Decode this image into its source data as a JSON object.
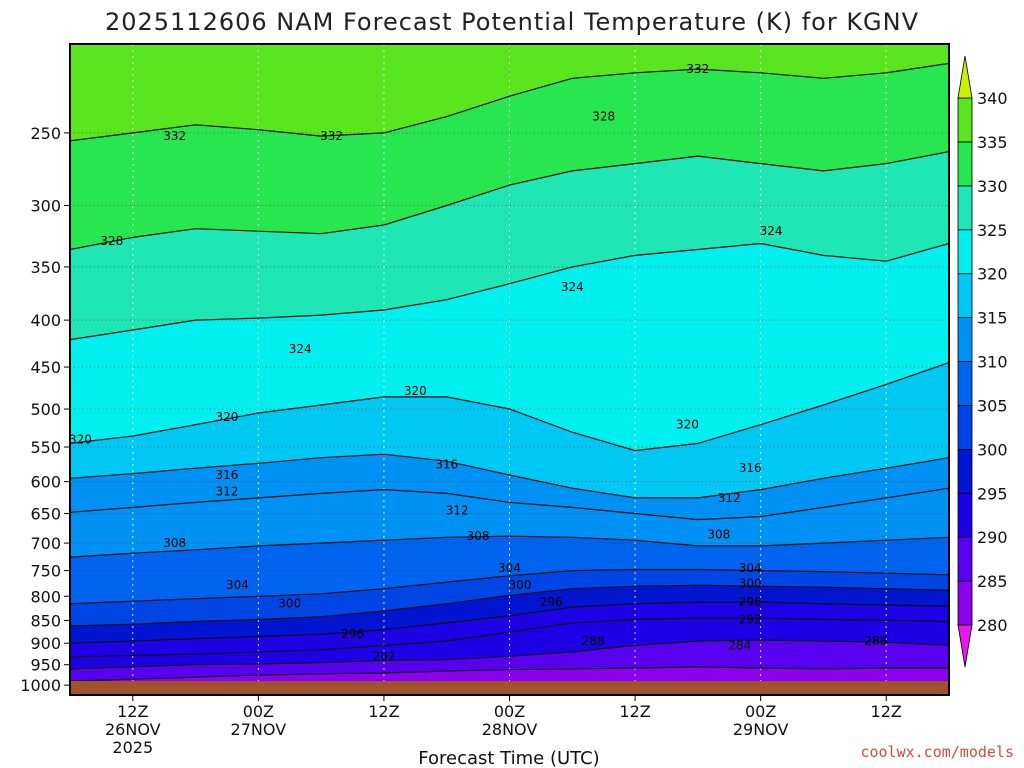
{
  "chart_data": {
    "type": "heatmap",
    "title": "2025112606 NAM Forecast Potential Temperature (K) for KGNV",
    "xlabel": "Forecast Time (UTC)",
    "ylabel": "",
    "credit": "coolwx.com/models",
    "y_scale": "log-pressure (hPa, inverted)",
    "ylim": [
      200,
      1025
    ],
    "y_ticks": [
      250,
      300,
      350,
      400,
      450,
      500,
      550,
      600,
      650,
      700,
      750,
      800,
      850,
      900,
      950,
      1000
    ],
    "x_ticks": [
      {
        "t": 6,
        "lines": [
          "12Z",
          "26NOV",
          "2025"
        ]
      },
      {
        "t": 18,
        "lines": [
          "00Z",
          "27NOV"
        ]
      },
      {
        "t": 30,
        "lines": [
          "12Z"
        ]
      },
      {
        "t": 42,
        "lines": [
          "00Z",
          "28NOV"
        ]
      },
      {
        "t": 54,
        "lines": [
          "12Z"
        ]
      },
      {
        "t": 66,
        "lines": [
          "00Z",
          "29NOV"
        ]
      },
      {
        "t": 78,
        "lines": [
          "12Z"
        ]
      }
    ],
    "xlim": [
      0,
      84
    ],
    "grid": true,
    "colorbar": {
      "levels": [
        280,
        285,
        290,
        295,
        300,
        305,
        310,
        315,
        320,
        325,
        330,
        335,
        340
      ],
      "colors": [
        "#b400e6",
        "#8c00f0",
        "#5a00f0",
        "#1e00e6",
        "#0014d2",
        "#0046e6",
        "#0064f0",
        "#0091f5",
        "#00c8f5",
        "#00f0f0",
        "#1ee6b4",
        "#28e650",
        "#5ae61e",
        "#aaf000"
      ],
      "ends": [
        "#e619e6",
        "#c8f000"
      ]
    },
    "series": [
      {
        "theta": 284,
        "p": [
          990,
          985,
          980,
          975,
          972,
          970,
          965,
          962,
          960,
          958,
          955,
          958,
          960,
          958,
          958
        ]
      },
      {
        "theta": 288,
        "p": [
          960,
          955,
          950,
          948,
          945,
          940,
          938,
          930,
          920,
          905,
          895,
          893,
          895,
          898,
          905
        ]
      },
      {
        "theta": 292,
        "p": [
          932,
          928,
          925,
          920,
          915,
          905,
          895,
          875,
          855,
          848,
          845,
          845,
          848,
          850,
          852
        ]
      },
      {
        "theta": 296,
        "p": [
          900,
          895,
          890,
          885,
          880,
          870,
          855,
          840,
          822,
          815,
          812,
          812,
          815,
          818,
          820
        ]
      },
      {
        "theta": 300,
        "p": [
          862,
          858,
          852,
          848,
          842,
          830,
          815,
          798,
          785,
          780,
          778,
          780,
          782,
          785,
          788
        ]
      },
      {
        "theta": 304,
        "p": [
          815,
          810,
          805,
          800,
          795,
          785,
          772,
          760,
          750,
          748,
          748,
          750,
          752,
          755,
          758
        ]
      },
      {
        "theta": 308,
        "p": [
          725,
          718,
          712,
          705,
          700,
          695,
          690,
          688,
          690,
          695,
          705,
          705,
          700,
          695,
          690
        ]
      },
      {
        "theta": 312,
        "p": [
          648,
          640,
          632,
          625,
          618,
          612,
          618,
          632,
          640,
          650,
          660,
          655,
          640,
          625,
          610
        ]
      },
      {
        "theta": 316,
        "p": [
          595,
          588,
          580,
          573,
          565,
          560,
          570,
          590,
          610,
          625,
          625,
          612,
          595,
          580,
          565
        ]
      },
      {
        "theta": 320,
        "p": [
          545,
          535,
          520,
          505,
          495,
          485,
          485,
          500,
          530,
          555,
          545,
          520,
          495,
          470,
          445
        ]
      },
      {
        "theta": 324,
        "p": [
          420,
          410,
          400,
          398,
          395,
          390,
          380,
          365,
          350,
          340,
          335,
          330,
          340,
          345,
          330
        ]
      },
      {
        "theta": 328,
        "p": [
          335,
          325,
          318,
          320,
          322,
          315,
          300,
          285,
          275,
          270,
          265,
          270,
          275,
          270,
          262
        ]
      },
      {
        "theta": 332,
        "p": [
          255,
          250,
          245,
          248,
          252,
          250,
          240,
          228,
          218,
          215,
          213,
          215,
          218,
          215,
          210
        ]
      }
    ],
    "series_t": [
      0,
      6,
      12,
      18,
      24,
      30,
      36,
      42,
      48,
      54,
      60,
      66,
      72,
      78,
      84
    ],
    "contour_labels": [
      {
        "text": "332",
        "t": 60,
        "p": 213
      },
      {
        "text": "328",
        "t": 51,
        "p": 240
      },
      {
        "text": "332",
        "t": 10,
        "p": 252
      },
      {
        "text": "332",
        "t": 25,
        "p": 252
      },
      {
        "text": "328",
        "t": 4,
        "p": 328
      },
      {
        "text": "324",
        "t": 67,
        "p": 320
      },
      {
        "text": "324",
        "t": 48,
        "p": 368
      },
      {
        "text": "324",
        "t": 22,
        "p": 430
      },
      {
        "text": "320",
        "t": 33,
        "p": 478
      },
      {
        "text": "320",
        "t": 15,
        "p": 510
      },
      {
        "text": "320",
        "t": 1,
        "p": 540
      },
      {
        "text": "320",
        "t": 59,
        "p": 520
      },
      {
        "text": "316",
        "t": 15,
        "p": 590
      },
      {
        "text": "316",
        "t": 36,
        "p": 575
      },
      {
        "text": "316",
        "t": 65,
        "p": 580
      },
      {
        "text": "312",
        "t": 15,
        "p": 615
      },
      {
        "text": "312",
        "t": 37,
        "p": 645
      },
      {
        "text": "312",
        "t": 63,
        "p": 625
      },
      {
        "text": "308",
        "t": 10,
        "p": 700
      },
      {
        "text": "308",
        "t": 39,
        "p": 688
      },
      {
        "text": "308",
        "t": 62,
        "p": 685
      },
      {
        "text": "304",
        "t": 16,
        "p": 778
      },
      {
        "text": "304",
        "t": 42,
        "p": 745
      },
      {
        "text": "304",
        "t": 65,
        "p": 745
      },
      {
        "text": "300",
        "t": 21,
        "p": 815
      },
      {
        "text": "300",
        "t": 43,
        "p": 778
      },
      {
        "text": "300",
        "t": 65,
        "p": 775
      },
      {
        "text": "296",
        "t": 27,
        "p": 880
      },
      {
        "text": "296",
        "t": 46,
        "p": 812
      },
      {
        "text": "296",
        "t": 65,
        "p": 812
      },
      {
        "text": "292",
        "t": 30,
        "p": 930
      },
      {
        "text": "292",
        "t": 65,
        "p": 848
      },
      {
        "text": "288",
        "t": 50,
        "p": 895
      },
      {
        "text": "288",
        "t": 77,
        "p": 895
      },
      {
        "text": "284",
        "t": 64,
        "p": 905
      }
    ]
  }
}
